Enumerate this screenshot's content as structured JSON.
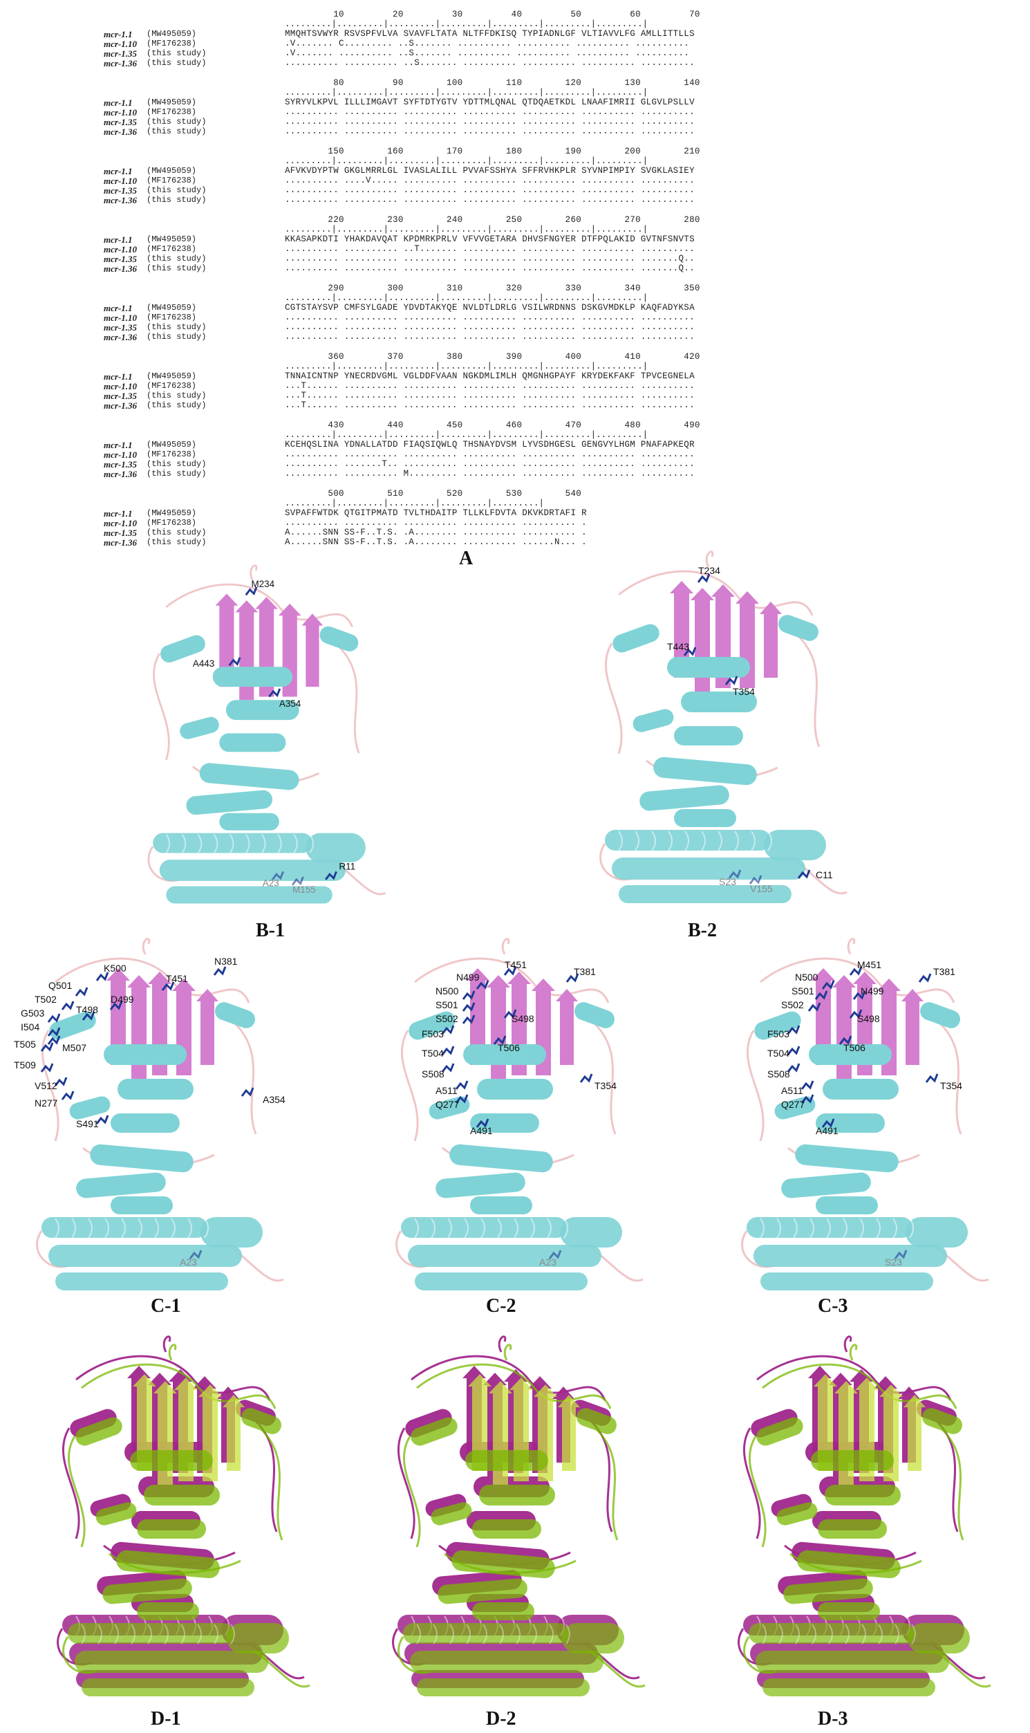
{
  "alignment": {
    "sequences": [
      {
        "name": "mcr-1.1",
        "accession": "(MW495059)"
      },
      {
        "name": "mcr-1.10",
        "accession": "(MF176238)"
      },
      {
        "name": "mcr-1.35",
        "accession": "(this study)"
      },
      {
        "name": "mcr-1.36",
        "accession": "(this study)"
      }
    ],
    "blocks": [
      {
        "ruler": "         10         20         30         40         50         60         70",
        "dots": ".........|.........|.........|.........|.........|.........|.........|",
        "rows": [
          "MMQHTSVWYR RSVSPFVLVA SVAVFLTATA NLTFFDKISQ TYPIADNLGF VLTIAVVLFG AMLLITTLLS",
          ".V....... C......... ..S....... .......... .......... .......... ..........",
          ".V....... .......... ..S....... .......... .......... .......... ..........",
          ".......... .......... ..S....... .......... .......... .......... .........."
        ]
      },
      {
        "ruler": "         80         90        100        110        120        130        140",
        "dots": ".........|.........|.........|.........|.........|.........|.........|",
        "rows": [
          "SYRYVLKPVL ILLLIMGAVT SYFTDTYGTV YDTTMLQNAL QTDQAETKDL LNAAFIMRII GLGVLPSLLV",
          ".......... .......... .......... .......... .......... .......... ..........",
          ".......... .......... .......... .......... .......... .......... ..........",
          ".......... .......... .......... .......... .......... .......... .........."
        ]
      },
      {
        "ruler": "        150        160        170        180        190        200        210",
        "dots": ".........|.........|.........|.........|.........|.........|.........|",
        "rows": [
          "AFVKVDYPTW GKGLMRRLGL IVASLALILL PVVAFSSHYA SFFRVHKPLR SYVNPIMPIY SVGKLASIEY",
          ".......... ....V..... .......... .......... .......... .......... ..........",
          ".......... .......... .......... .......... .......... .......... ..........",
          ".......... .......... .......... .......... .......... .......... .........."
        ]
      },
      {
        "ruler": "        220        230        240        250        260        270        280",
        "dots": ".........|.........|.........|.........|.........|.........|.........|",
        "rows": [
          "KKASAPKDTI YHAKDAVQAT KPDMRKPRLV VFVVGETARA DHVSFNGYER DTFPQLAKID GVTNFSNVTS",
          ".......... .......... ..T....... .......... .......... .......... ..........",
          ".......... .......... .......... .......... .......... .......... .......Q..",
          ".......... .......... .......... .......... .......... .......... .......Q.."
        ]
      },
      {
        "ruler": "        290        300        310        320        330        340        350",
        "dots": ".........|.........|.........|.........|.........|.........|.........|",
        "rows": [
          "CGTSTAYSVP CMFSYLGADE YDVDTAKYQE NVLDTLDRLG VSILWRDNNS DSKGVMDKLP KAQFADYKSA",
          ".......... .......... .......... .......... .......... .......... ..........",
          ".......... .......... .......... .......... .......... .......... ..........",
          ".......... .......... .......... .......... .......... .......... .........."
        ]
      },
      {
        "ruler": "        360        370        380        390        400        410        420",
        "dots": ".........|.........|.........|.........|.........|.........|.........|",
        "rows": [
          "TNNAICNTNP YNECRDVGML VGLDDFVAAN NGKDMLIMLH QMGNHGPAYF KRYDEKFAKF TPVCEGNELA",
          "...T...... .......... .......... .......... .......... .......... ..........",
          "...T...... .......... .......... .......... .......... .......... ..........",
          "...T...... .......... .......... .......... .......... .......... .........."
        ]
      },
      {
        "ruler": "        430        440        450        460        470        480        490",
        "dots": ".........|.........|.........|.........|.........|.........|.........|",
        "rows": [
          "KCEHQSLINA YDNALLATDD FIAQSIQWLQ THSNAYDVSM LYVSDHGESL GENGVYLHGM PNAFAPKEQR",
          ".......... .......... .......... .......... .......... .......... ..........",
          ".......... .......T.. .......... .......... .......... .......... ..........",
          ".......... .......... M......... .......... .......... .......... .........."
        ]
      },
      {
        "ruler": "        500        510        520        530        540",
        "dots": ".........|.........|.........|.........|.........|",
        "rows": [
          "SVPAFFWTDK QTGITPMATD TVLTHDAITP TLLKLFDVTA DKVKDRTAFI R",
          ".......... .......... .......... .......... .......... .",
          "A......SNN SS-F..T.S. .A........ .......... .......... .",
          "A......SNN SS-F..T.S. .A........ .......... ......N... ."
        ]
      }
    ]
  },
  "panel_labels": {
    "a": "A",
    "b1": "B-1",
    "b2": "B-2",
    "c1": "C-1",
    "c2": "C-2",
    "c3": "C-3",
    "d1": "D-1",
    "d2": "D-2",
    "d3": "D-3"
  },
  "residues": {
    "b1": [
      "M234",
      "A443",
      "A354",
      "A23",
      "M155",
      "R11"
    ],
    "b2": [
      "T234",
      "T443",
      "T354",
      "S23",
      "V155",
      "C11"
    ],
    "c1": [
      "N381",
      "K500",
      "T451",
      "Q501",
      "D499",
      "T502",
      "G503",
      "T498",
      "I504",
      "M507",
      "T505",
      "T509",
      "V512",
      "A354",
      "N277",
      "S491",
      "A23"
    ],
    "c2": [
      "T451",
      "N499",
      "T381",
      "N500",
      "S501",
      "S498",
      "S502",
      "F503",
      "T506",
      "T504",
      "S508",
      "T354",
      "A511",
      "Q277",
      "A491",
      "A23"
    ],
    "c3": [
      "N500",
      "M451",
      "T381",
      "S501",
      "N499",
      "S502",
      "S498",
      "F503",
      "T506",
      "T504",
      "S508",
      "T354",
      "A511",
      "Q277",
      "A491",
      "S23"
    ]
  },
  "colors": {
    "helix": "#7fd3d6",
    "sheet": "#d47ed0",
    "loop": "#f0c6c8",
    "residue": "#1f3a93",
    "overlay_magenta": "#a0268c",
    "overlay_green": "#7ab800"
  }
}
